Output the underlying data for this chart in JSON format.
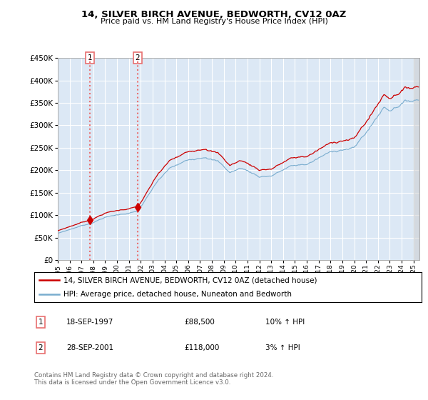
{
  "title": "14, SILVER BIRCH AVENUE, BEDWORTH, CV12 0AZ",
  "subtitle": "Price paid vs. HM Land Registry's House Price Index (HPI)",
  "legend_line1": "14, SILVER BIRCH AVENUE, BEDWORTH, CV12 0AZ (detached house)",
  "legend_line2": "HPI: Average price, detached house, Nuneaton and Bedworth",
  "sale1_date": "18-SEP-1997",
  "sale1_price": "£88,500",
  "sale1_hpi": "10% ↑ HPI",
  "sale2_date": "28-SEP-2001",
  "sale2_price": "£118,000",
  "sale2_hpi": "3% ↑ HPI",
  "footer": "Contains HM Land Registry data © Crown copyright and database right 2024.\nThis data is licensed under the Open Government Licence v3.0.",
  "sale1_year": 1997.72,
  "sale1_value": 88500,
  "sale2_year": 2001.74,
  "sale2_value": 118000,
  "red_color": "#cc0000",
  "blue_color": "#7aadcf",
  "background_plot": "#dce8f5",
  "grid_color": "#ffffff",
  "dashed_color": "#e87070",
  "ylim": [
    0,
    450000
  ],
  "xlim_start": 1995,
  "xlim_end": 2025.5
}
